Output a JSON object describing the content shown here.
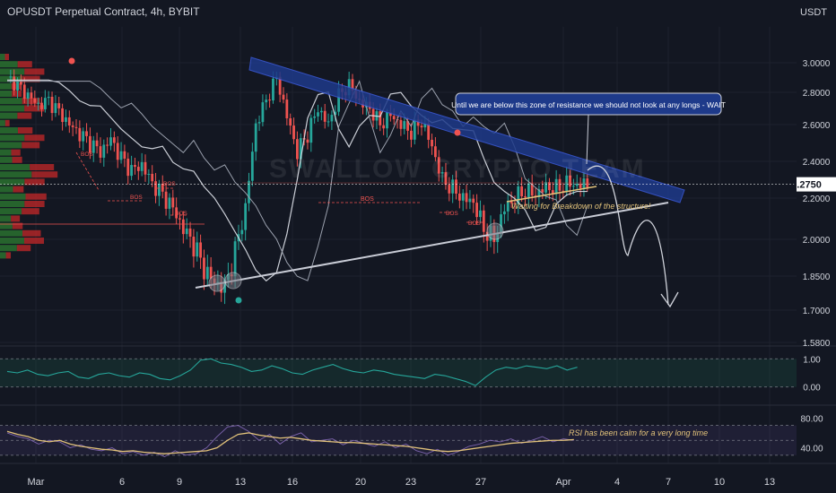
{
  "header": {
    "title": "OPUSDT Perpetual Contract, 4h, BYBIT",
    "unit": "USDT"
  },
  "watermark": "SWALLOW CRYPTO TEAM",
  "colors": {
    "background": "#131722",
    "bull": "#26a69a",
    "bear": "#ef5350",
    "trendline_upper": "#1e3a8a",
    "trendline_lower": "#c9ccd6",
    "ma_white": "#e0e3eb",
    "rsi_line": "#e2c27a",
    "price_tag": "#ffffff"
  },
  "current_price": "2.2750",
  "annotations": {
    "callout": "Until we are below this zone of resistance we should not look at any longs - WAIT",
    "waiting": "Waiting for Breakdown of the structure!",
    "rsi_note": "RSI has been calm for a very long time",
    "bos_label": "BOS",
    "choch_label": "CHoCH"
  },
  "chart_data": [
    {
      "type": "candlestick",
      "title": "OPUSDT Perpetual Contract, 4h, BYBIT",
      "ylabel": "USDT",
      "y_ticks": [
        "3.0000",
        "2.8000",
        "2.6000",
        "2.4000",
        "2.2000",
        "2.0000",
        "1.8500",
        "1.7000",
        "1.5800"
      ],
      "x_ticks": [
        "Mar",
        "6",
        "9",
        "13",
        "16",
        "20",
        "23",
        "27",
        "Apr",
        "4",
        "7",
        "10",
        "13"
      ],
      "ylim": [
        1.58,
        3.05
      ],
      "last_price": 2.275,
      "path_close": [
        [
          0,
          2.9
        ],
        [
          3,
          2.85
        ],
        [
          6,
          2.78
        ],
        [
          9,
          2.72
        ],
        [
          12,
          2.75
        ],
        [
          15,
          2.68
        ],
        [
          18,
          2.6
        ],
        [
          21,
          2.55
        ],
        [
          24,
          2.5
        ],
        [
          27,
          2.45
        ],
        [
          30,
          2.52
        ],
        [
          33,
          2.42
        ],
        [
          36,
          2.35
        ],
        [
          39,
          2.38
        ],
        [
          42,
          2.28
        ],
        [
          45,
          2.22
        ],
        [
          48,
          2.15
        ],
        [
          51,
          2.05
        ],
        [
          54,
          1.98
        ],
        [
          57,
          1.88
        ],
        [
          60,
          1.82
        ],
        [
          63,
          1.8
        ],
        [
          66,
          1.95
        ],
        [
          69,
          2.15
        ],
        [
          72,
          2.6
        ],
        [
          75,
          2.75
        ],
        [
          78,
          2.9
        ],
        [
          81,
          2.65
        ],
        [
          84,
          2.45
        ],
        [
          87,
          2.55
        ],
        [
          90,
          2.7
        ],
        [
          93,
          2.6
        ],
        [
          96,
          2.78
        ],
        [
          99,
          2.85
        ],
        [
          102,
          2.74
        ],
        [
          105,
          2.7
        ],
        [
          108,
          2.6
        ],
        [
          111,
          2.66
        ],
        [
          114,
          2.6
        ],
        [
          117,
          2.56
        ],
        [
          120,
          2.62
        ],
        [
          123,
          2.48
        ],
        [
          126,
          2.3
        ],
        [
          129,
          2.25
        ],
        [
          132,
          2.2
        ],
        [
          135,
          2.18
        ],
        [
          138,
          2.05
        ],
        [
          141,
          2.0
        ],
        [
          144,
          2.15
        ],
        [
          147,
          2.2
        ],
        [
          150,
          2.24
        ],
        [
          153,
          2.22
        ],
        [
          156,
          2.26
        ],
        [
          159,
          2.25
        ],
        [
          162,
          2.28
        ],
        [
          165,
          2.27
        ],
        [
          168,
          2.275
        ]
      ]
    },
    {
      "type": "line",
      "title": "",
      "y_ticks": [
        "1.00",
        "0.00"
      ],
      "ylim": [
        -0.2,
        1.2
      ],
      "values": [
        0.55,
        0.5,
        0.6,
        0.45,
        0.4,
        0.5,
        0.55,
        0.35,
        0.3,
        0.45,
        0.5,
        0.4,
        0.35,
        0.5,
        0.45,
        0.3,
        0.25,
        0.4,
        0.6,
        0.95,
        1.0,
        0.85,
        0.8,
        0.7,
        0.55,
        0.6,
        0.75,
        0.65,
        0.5,
        0.45,
        0.6,
        0.7,
        0.8,
        0.65,
        0.55,
        0.5,
        0.6,
        0.55,
        0.45,
        0.4,
        0.35,
        0.3,
        0.45,
        0.4,
        0.3,
        0.2,
        0.05,
        0.35,
        0.6,
        0.7,
        0.65,
        0.75,
        0.7,
        0.65,
        0.75,
        0.6,
        0.7
      ]
    },
    {
      "type": "line",
      "title": "",
      "y_ticks": [
        "80.00",
        "40.00"
      ],
      "ylim": [
        25,
        90
      ],
      "series": [
        {
          "values": [
            62,
            58,
            55,
            50,
            48,
            50,
            45,
            42,
            40,
            38,
            37,
            35,
            36,
            34,
            33,
            32,
            33,
            34,
            35,
            36,
            40,
            50,
            58,
            60,
            57,
            55,
            53,
            54,
            52,
            50,
            49,
            48,
            47,
            47,
            46,
            45,
            44,
            43,
            42,
            40,
            38,
            36,
            35,
            36,
            38,
            40,
            42,
            44,
            46,
            47,
            48,
            49,
            50,
            50,
            51
          ]
        },
        {
          "values": [
            60,
            55,
            52,
            45,
            50,
            48,
            40,
            44,
            38,
            36,
            40,
            32,
            35,
            30,
            34,
            28,
            36,
            30,
            32,
            40,
            55,
            68,
            70,
            62,
            50,
            58,
            45,
            55,
            60,
            48,
            50,
            52,
            44,
            50,
            46,
            42,
            48,
            40,
            45,
            36,
            32,
            38,
            30,
            35,
            42,
            45,
            50,
            48,
            52,
            46,
            50,
            55,
            48,
            52,
            50
          ]
        }
      ]
    }
  ]
}
